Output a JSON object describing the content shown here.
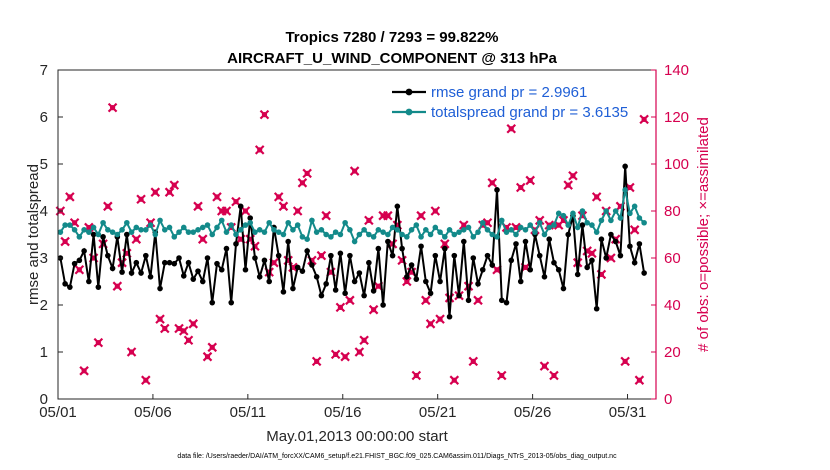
{
  "chart_data": {
    "type": "line",
    "title": "Tropics 7280 / 7293 = 99.822%",
    "subtitle": "AIRCRAFT_U_WIND_COMPONENT @ 313 hPa",
    "xlabel": "May.01,2013 00:00:00 start",
    "ylabel_left": "rmse and totalspread",
    "ylabel_right": "# of obs: o=possible; ×=assimilated",
    "footer": "data file: /Users/raeder/DAI/ATM_forcXX/CAM6_setup/f.e21.FHIST_BGC.f09_025.CAM6assim.011/Diags_NTrS_2013-05/obs_diag_output.nc",
    "xlim": [
      1,
      32.5
    ],
    "ylim_left": [
      0,
      7
    ],
    "ylim_right": [
      0,
      140
    ],
    "x_ticks": [
      1,
      6,
      11,
      16,
      21,
      26,
      31
    ],
    "x_tick_labels": [
      "05/01",
      "05/06",
      "05/11",
      "05/16",
      "05/21",
      "05/26",
      "05/31"
    ],
    "y_ticks_left": [
      "0",
      "1",
      "2",
      "3",
      "4",
      "5",
      "6",
      "7"
    ],
    "y_ticks_right": [
      "0",
      "20",
      "40",
      "60",
      "80",
      "100",
      "120",
      "140"
    ],
    "legend": [
      {
        "label": "rmse grand pr = 2.9961",
        "color": "#000000"
      },
      {
        "label": "totalspread grand pr = 3.6135",
        "color": "#138a8a"
      }
    ],
    "colors": {
      "rmse": "#000000",
      "spread": "#138a8a",
      "obs": "#d6004f",
      "axis_right": "#d6004f"
    },
    "series": [
      {
        "name": "rmse",
        "x": [
          1.125,
          1.375,
          1.625,
          1.875,
          2.125,
          2.375,
          2.625,
          2.875,
          3.125,
          3.375,
          3.625,
          3.875,
          4.125,
          4.375,
          4.625,
          4.875,
          5.125,
          5.375,
          5.625,
          5.875,
          6.125,
          6.375,
          6.625,
          6.875,
          7.125,
          7.375,
          7.625,
          7.875,
          8.125,
          8.375,
          8.625,
          8.875,
          9.125,
          9.375,
          9.625,
          9.875,
          10.125,
          10.375,
          10.625,
          10.875,
          11.125,
          11.375,
          11.625,
          11.875,
          12.125,
          12.375,
          12.625,
          12.875,
          13.125,
          13.375,
          13.625,
          13.875,
          14.125,
          14.375,
          14.625,
          14.875,
          15.125,
          15.375,
          15.625,
          15.875,
          16.125,
          16.375,
          16.625,
          16.875,
          17.125,
          17.375,
          17.625,
          17.875,
          18.125,
          18.375,
          18.625,
          18.875,
          19.125,
          19.375,
          19.625,
          19.875,
          20.125,
          20.375,
          20.625,
          20.875,
          21.125,
          21.375,
          21.625,
          21.875,
          22.125,
          22.375,
          22.625,
          22.875,
          23.125,
          23.375,
          23.625,
          23.875,
          24.125,
          24.375,
          24.625,
          24.875,
          25.125,
          25.375,
          25.625,
          25.875,
          26.125,
          26.375,
          26.625,
          26.875,
          27.125,
          27.375,
          27.625,
          27.875,
          28.125,
          28.375,
          28.625,
          28.875,
          29.125,
          29.375,
          29.625,
          29.875,
          30.125,
          30.375,
          30.625,
          30.875,
          31.125,
          31.375,
          31.625,
          31.875
        ],
        "values": [
          3.0,
          2.45,
          2.38,
          2.88,
          2.95,
          3.15,
          2.5,
          3.5,
          2.38,
          3.45,
          3.05,
          2.78,
          3.45,
          2.7,
          3.5,
          2.68,
          2.9,
          2.68,
          3.05,
          2.6,
          3.55,
          2.35,
          2.9,
          2.9,
          2.88,
          3.0,
          2.62,
          2.9,
          2.55,
          2.72,
          2.5,
          3.0,
          2.05,
          2.88,
          2.75,
          3.2,
          2.05,
          3.3,
          4.1,
          2.75,
          3.85,
          3.0,
          2.6,
          2.95,
          2.5,
          3.65,
          3.05,
          2.28,
          3.35,
          2.35,
          2.8,
          2.72,
          3.15,
          2.85,
          2.6,
          2.2,
          2.45,
          3.05,
          2.32,
          3.1,
          2.25,
          3.05,
          2.5,
          2.68,
          2.2,
          2.9,
          2.3,
          3.2,
          2.0,
          3.35,
          3.05,
          4.1,
          3.2,
          2.6,
          2.85,
          2.55,
          3.25,
          2.5,
          2.25,
          3.05,
          2.5,
          3.2,
          1.75,
          3.05,
          2.2,
          3.35,
          2.1,
          3.0,
          2.45,
          2.75,
          3.05,
          2.85,
          4.45,
          2.1,
          2.05,
          2.95,
          3.3,
          2.5,
          3.35,
          2.75,
          3.5,
          3.05,
          2.6,
          3.4,
          2.9,
          2.75,
          2.35,
          3.5,
          3.9,
          2.65,
          3.7,
          2.8,
          2.95,
          1.92,
          3.4,
          3.0,
          3.5,
          3.35,
          3.05,
          4.95,
          3.25,
          2.9,
          3.3,
          2.68
        ]
      },
      {
        "name": "totalspread",
        "x": [
          1.125,
          1.375,
          1.625,
          1.875,
          2.125,
          2.375,
          2.625,
          2.875,
          3.125,
          3.375,
          3.625,
          3.875,
          4.125,
          4.375,
          4.625,
          4.875,
          5.125,
          5.375,
          5.625,
          5.875,
          6.125,
          6.375,
          6.625,
          6.875,
          7.125,
          7.375,
          7.625,
          7.875,
          8.125,
          8.375,
          8.625,
          8.875,
          9.125,
          9.375,
          9.625,
          9.875,
          10.125,
          10.375,
          10.625,
          10.875,
          11.125,
          11.375,
          11.625,
          11.875,
          12.125,
          12.375,
          12.625,
          12.875,
          13.125,
          13.375,
          13.625,
          13.875,
          14.125,
          14.375,
          14.625,
          14.875,
          15.125,
          15.375,
          15.625,
          15.875,
          16.125,
          16.375,
          16.625,
          16.875,
          17.125,
          17.375,
          17.625,
          17.875,
          18.125,
          18.375,
          18.625,
          18.875,
          19.125,
          19.375,
          19.625,
          19.875,
          20.125,
          20.375,
          20.625,
          20.875,
          21.125,
          21.375,
          21.625,
          21.875,
          22.125,
          22.375,
          22.625,
          22.875,
          23.125,
          23.375,
          23.625,
          23.875,
          24.125,
          24.375,
          24.625,
          24.875,
          25.125,
          25.375,
          25.625,
          25.875,
          26.125,
          26.375,
          26.625,
          26.875,
          27.125,
          27.375,
          27.625,
          27.875,
          28.125,
          28.375,
          28.625,
          28.875,
          29.125,
          29.375,
          29.625,
          29.875,
          30.125,
          30.375,
          30.625,
          30.875,
          31.125,
          31.375,
          31.625,
          31.875
        ],
        "values": [
          3.55,
          3.7,
          3.7,
          3.6,
          3.45,
          3.6,
          3.55,
          3.65,
          3.5,
          3.75,
          3.6,
          3.55,
          3.5,
          3.6,
          3.75,
          3.55,
          3.65,
          3.6,
          3.6,
          3.7,
          3.5,
          3.8,
          3.6,
          3.65,
          3.45,
          3.55,
          3.65,
          3.55,
          3.55,
          3.6,
          3.65,
          3.7,
          3.5,
          3.65,
          3.8,
          3.55,
          3.7,
          3.5,
          3.6,
          3.7,
          3.75,
          3.55,
          3.6,
          3.55,
          3.75,
          3.6,
          3.55,
          3.5,
          3.75,
          3.6,
          3.7,
          3.45,
          3.4,
          3.8,
          3.55,
          3.6,
          3.5,
          3.45,
          3.55,
          3.5,
          3.75,
          3.6,
          3.35,
          3.5,
          3.6,
          3.5,
          3.45,
          3.6,
          3.55,
          3.5,
          3.65,
          3.6,
          3.5,
          3.45,
          3.6,
          3.7,
          3.45,
          3.6,
          3.5,
          3.65,
          3.55,
          3.45,
          3.6,
          3.5,
          3.55,
          3.6,
          3.65,
          3.45,
          3.55,
          3.75,
          3.6,
          3.5,
          3.45,
          3.8,
          3.55,
          3.6,
          3.5,
          3.65,
          3.6,
          3.7,
          3.55,
          3.75,
          3.5,
          3.65,
          3.7,
          3.95,
          3.9,
          3.7,
          3.95,
          3.65,
          4.0,
          3.75,
          3.7,
          3.55,
          3.8,
          4.0,
          3.8,
          4.0,
          3.85,
          4.45,
          3.95,
          4.1,
          3.85,
          3.75
        ]
      }
    ],
    "obs_possible": {
      "x": [
        1.125,
        1.375,
        1.625,
        1.875,
        2.125,
        2.375,
        2.625,
        2.875,
        3.125,
        3.375,
        3.625,
        3.875,
        4.125,
        4.375,
        4.625,
        4.875,
        5.125,
        5.375,
        5.625,
        5.875,
        6.125,
        6.375,
        6.625,
        6.875,
        7.125,
        7.375,
        7.625,
        7.875,
        8.125,
        8.375,
        8.625,
        8.875,
        9.125,
        9.375,
        9.625,
        9.875,
        10.125,
        10.375,
        10.625,
        10.875,
        11.125,
        11.375,
        11.625,
        11.875,
        12.125,
        12.375,
        12.625,
        12.875,
        13.125,
        13.375,
        13.625,
        13.875,
        14.125,
        14.375,
        14.625,
        14.875,
        15.125,
        15.375,
        15.625,
        15.875,
        16.125,
        16.375,
        16.625,
        16.875,
        17.125,
        17.375,
        17.625,
        17.875,
        18.125,
        18.375,
        18.625,
        18.875,
        19.125,
        19.375,
        19.625,
        19.875,
        20.125,
        20.375,
        20.625,
        20.875,
        21.125,
        21.375,
        21.625,
        21.875,
        22.125,
        22.375,
        22.625,
        22.875,
        23.125,
        23.375,
        23.625,
        23.875,
        24.125,
        24.375,
        24.625,
        24.875,
        25.125,
        25.375,
        25.625,
        25.875,
        26.125,
        26.375,
        26.625,
        26.875,
        27.125,
        27.375,
        27.625,
        27.875,
        28.125,
        28.375,
        28.625,
        28.875,
        29.125,
        29.375,
        29.625,
        29.875,
        30.125,
        30.375,
        30.625,
        30.875,
        31.125,
        31.375,
        31.625,
        31.875
      ],
      "values": [
        80,
        67,
        86,
        75,
        55,
        12,
        73,
        60,
        24,
        66,
        82,
        124,
        48,
        58,
        62,
        20,
        68,
        85,
        8,
        75,
        88,
        34,
        30,
        88,
        91,
        30,
        29,
        25,
        32,
        82,
        68,
        18,
        22,
        86,
        80,
        80,
        73,
        84,
        68,
        80,
        68,
        65,
        106,
        121,
        54,
        58,
        86,
        82,
        59,
        56,
        80,
        92,
        96,
        59,
        16,
        61,
        78,
        54,
        19,
        39,
        18,
        42,
        97,
        20,
        25,
        76,
        38,
        48,
        78,
        78,
        66,
        74,
        59,
        50,
        54,
        10,
        78,
        42,
        32,
        80,
        34,
        66,
        43,
        8,
        44,
        74,
        48,
        16,
        42,
        74,
        75,
        92,
        55,
        10,
        73,
        115,
        73,
        90,
        56,
        93,
        72,
        76,
        14,
        74,
        10,
        74,
        76,
        91,
        95,
        58,
        78,
        63,
        62,
        86,
        53,
        80,
        60,
        68,
        82,
        16,
        90,
        72,
        8,
        119
      ],
      "markers_possible": [
        "#138a8a"
      ]
    }
  }
}
